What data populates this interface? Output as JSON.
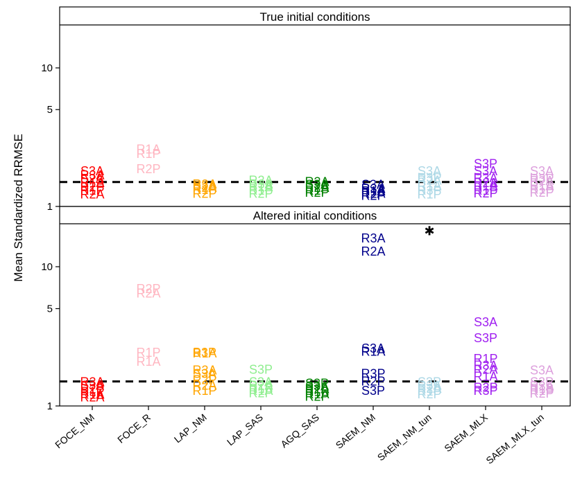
{
  "chart_data": {
    "type": "scatter",
    "ylabel": "Mean Standardized RRMSE",
    "yscale": "log",
    "ylim": [
      1,
      22
    ],
    "yticks": [
      1,
      5,
      10
    ],
    "reference_line": 1.5,
    "categories": [
      "FOCE_NM",
      "FOCE_R",
      "LAP_NM",
      "LAP_SAS",
      "AGQ_SAS",
      "SAEM_NM",
      "SAEM_NM_tun",
      "SAEM_MLX",
      "SAEM_MLX_tun"
    ],
    "colors": {
      "FOCE_NM": "#ff0000",
      "FOCE_R": "#ffb6c1",
      "LAP_NM": "#ffa500",
      "LAP_SAS": "#90ee90",
      "AGQ_SAS": "#008000",
      "SAEM_NM": "#00008b",
      "SAEM_NM_tun": "#add8e6",
      "SAEM_MLX": "#a020f0",
      "SAEM_MLX_tun": "#dda0dd"
    },
    "panels": [
      {
        "title": "True initial conditions",
        "points": [
          {
            "category": "FOCE_NM",
            "label": "S3A",
            "y": 1.82
          },
          {
            "category": "FOCE_NM",
            "label": "R3A",
            "y": 1.7
          },
          {
            "category": "FOCE_NM",
            "label": "S2A",
            "y": 1.6
          },
          {
            "category": "FOCE_NM",
            "label": "R1A",
            "y": 1.5
          },
          {
            "category": "FOCE_NM",
            "label": "R2P",
            "y": 1.4
          },
          {
            "category": "FOCE_NM",
            "label": "R1P",
            "y": 1.32
          },
          {
            "category": "FOCE_NM",
            "label": "R2A",
            "y": 1.24
          },
          {
            "category": "FOCE_R",
            "label": "R1A",
            "y": 2.62
          },
          {
            "category": "FOCE_R",
            "label": "R1P",
            "y": 2.42
          },
          {
            "category": "FOCE_R",
            "label": "R2P",
            "y": 1.88
          },
          {
            "category": "LAP_NM",
            "label": "R3A",
            "y": 1.46
          },
          {
            "category": "LAP_NM",
            "label": "S3A",
            "y": 1.42
          },
          {
            "category": "LAP_NM",
            "label": "R2A",
            "y": 1.38
          },
          {
            "category": "LAP_NM",
            "label": "R1P",
            "y": 1.33
          },
          {
            "category": "LAP_NM",
            "label": "R2P",
            "y": 1.25
          },
          {
            "category": "LAP_SAS",
            "label": "R2A",
            "y": 1.56
          },
          {
            "category": "LAP_SAS",
            "label": "R3A",
            "y": 1.46
          },
          {
            "category": "LAP_SAS",
            "label": "R1A",
            "y": 1.4
          },
          {
            "category": "LAP_SAS",
            "label": "R1P",
            "y": 1.32
          },
          {
            "category": "LAP_SAS",
            "label": "R2P",
            "y": 1.25
          },
          {
            "category": "AGQ_SAS",
            "label": "R3A",
            "y": 1.52
          },
          {
            "category": "AGQ_SAS",
            "label": "S3A",
            "y": 1.45
          },
          {
            "category": "AGQ_SAS",
            "label": "R2A",
            "y": 1.38
          },
          {
            "category": "AGQ_SAS",
            "label": "R1P",
            "y": 1.32
          },
          {
            "category": "AGQ_SAS",
            "label": "R2P",
            "y": 1.27
          },
          {
            "category": "SAEM_NM",
            "label": "S3A",
            "y": 1.45
          },
          {
            "category": "SAEM_NM",
            "label": "R3A",
            "y": 1.36
          },
          {
            "category": "SAEM_NM",
            "label": "R1A",
            "y": 1.3
          },
          {
            "category": "SAEM_NM",
            "label": "R2A",
            "y": 1.25
          },
          {
            "category": "SAEM_NM",
            "label": "R2P",
            "y": 1.21
          },
          {
            "category": "SAEM_NM_tun",
            "label": "S3A",
            "y": 1.82
          },
          {
            "category": "SAEM_NM_tun",
            "label": "R3P",
            "y": 1.62
          },
          {
            "category": "SAEM_NM_tun",
            "label": "R2A",
            "y": 1.56
          },
          {
            "category": "SAEM_NM_tun",
            "label": "R1A",
            "y": 1.42
          },
          {
            "category": "SAEM_NM_tun",
            "label": "R3P",
            "y": 1.32
          },
          {
            "category": "SAEM_NM_tun",
            "label": "R1P",
            "y": 1.24
          },
          {
            "category": "SAEM_MLX",
            "label": "S3P",
            "y": 2.05
          },
          {
            "category": "SAEM_MLX",
            "label": "S3A",
            "y": 1.82
          },
          {
            "category": "SAEM_MLX",
            "label": "R3A",
            "y": 1.62
          },
          {
            "category": "SAEM_MLX",
            "label": "R2A",
            "y": 1.5
          },
          {
            "category": "SAEM_MLX",
            "label": "R1A",
            "y": 1.42
          },
          {
            "category": "SAEM_MLX",
            "label": "R1P",
            "y": 1.32
          },
          {
            "category": "SAEM_MLX",
            "label": "R2P",
            "y": 1.26
          },
          {
            "category": "SAEM_MLX_tun",
            "label": "S3A",
            "y": 1.82
          },
          {
            "category": "SAEM_MLX_tun",
            "label": "R3P",
            "y": 1.6
          },
          {
            "category": "SAEM_MLX_tun",
            "label": "R2A",
            "y": 1.55
          },
          {
            "category": "SAEM_MLX_tun",
            "label": "R1A",
            "y": 1.42
          },
          {
            "category": "SAEM_MLX_tun",
            "label": "R1P",
            "y": 1.34
          },
          {
            "category": "SAEM_MLX_tun",
            "label": "R2P",
            "y": 1.27
          }
        ]
      },
      {
        "title": "Altered initial conditions",
        "points": [
          {
            "category": "FOCE_NM",
            "label": "R3A",
            "y": 1.5
          },
          {
            "category": "FOCE_NM",
            "label": "S3A",
            "y": 1.42
          },
          {
            "category": "FOCE_NM",
            "label": "R2P",
            "y": 1.34
          },
          {
            "category": "FOCE_NM",
            "label": "R1P",
            "y": 1.28
          },
          {
            "category": "FOCE_NM",
            "label": "R1A",
            "y": 1.22
          },
          {
            "category": "FOCE_NM",
            "label": "R2A",
            "y": 1.17
          },
          {
            "category": "FOCE_R",
            "label": "R2P",
            "y": 7.0
          },
          {
            "category": "FOCE_R",
            "label": "R2A",
            "y": 6.5
          },
          {
            "category": "FOCE_R",
            "label": "R1P",
            "y": 2.45
          },
          {
            "category": "FOCE_R",
            "label": "R1A",
            "y": 2.1
          },
          {
            "category": "LAP_NM",
            "label": "B3P",
            "y": 2.45
          },
          {
            "category": "LAP_NM",
            "label": "R1A",
            "y": 2.42
          },
          {
            "category": "LAP_NM",
            "label": "R3A",
            "y": 1.82
          },
          {
            "category": "LAP_NM",
            "label": "S3A",
            "y": 1.72
          },
          {
            "category": "LAP_NM",
            "label": "R2P",
            "y": 1.55
          },
          {
            "category": "LAP_NM",
            "label": "R2A",
            "y": 1.42
          },
          {
            "category": "LAP_NM",
            "label": "R1P",
            "y": 1.3
          },
          {
            "category": "LAP_SAS",
            "label": "S3P",
            "y": 1.85
          },
          {
            "category": "LAP_SAS",
            "label": "S3A",
            "y": 1.5
          },
          {
            "category": "LAP_SAS",
            "label": "R2A",
            "y": 1.42
          },
          {
            "category": "LAP_SAS",
            "label": "R1P",
            "y": 1.35
          },
          {
            "category": "LAP_SAS",
            "label": "R1A",
            "y": 1.3
          },
          {
            "category": "LAP_SAS",
            "label": "R2P",
            "y": 1.25
          },
          {
            "category": "AGQ_SAS",
            "label": "S3P",
            "y": 1.47
          },
          {
            "category": "AGQ_SAS",
            "label": "S3A",
            "y": 1.4
          },
          {
            "category": "AGQ_SAS",
            "label": "R2A",
            "y": 1.34
          },
          {
            "category": "AGQ_SAS",
            "label": "R1P",
            "y": 1.28
          },
          {
            "category": "AGQ_SAS",
            "label": "R1A",
            "y": 1.23
          },
          {
            "category": "AGQ_SAS",
            "label": "R2P",
            "y": 1.18
          },
          {
            "category": "SAEM_NM",
            "label": "R3A",
            "y": 16.2
          },
          {
            "category": "SAEM_NM",
            "label": "R2A",
            "y": 13.0
          },
          {
            "category": "SAEM_NM",
            "label": "S3A",
            "y": 2.62
          },
          {
            "category": "SAEM_NM",
            "label": "R1A",
            "y": 2.48
          },
          {
            "category": "SAEM_NM",
            "label": "R3P",
            "y": 1.72
          },
          {
            "category": "SAEM_NM",
            "label": "R2P",
            "y": 1.52
          },
          {
            "category": "SAEM_NM",
            "label": "S3P",
            "y": 1.3
          },
          {
            "category": "SAEM_NM_tun",
            "label": "S3P",
            "y": 1.5
          },
          {
            "category": "SAEM_NM_tun",
            "label": "R3A",
            "y": 1.42
          },
          {
            "category": "SAEM_NM_tun",
            "label": "R2A",
            "y": 1.35
          },
          {
            "category": "SAEM_NM_tun",
            "label": "R1P",
            "y": 1.29
          },
          {
            "category": "SAEM_NM_tun",
            "label": "R2P",
            "y": 1.23
          },
          {
            "category": "SAEM_MLX",
            "label": "S3A",
            "y": 4.05
          },
          {
            "category": "SAEM_MLX",
            "label": "S3P",
            "y": 3.1
          },
          {
            "category": "SAEM_MLX",
            "label": "R1P",
            "y": 2.2
          },
          {
            "category": "SAEM_MLX",
            "label": "R3A",
            "y": 1.98
          },
          {
            "category": "SAEM_MLX",
            "label": "R2A",
            "y": 1.85
          },
          {
            "category": "SAEM_MLX",
            "label": "R1A",
            "y": 1.65
          },
          {
            "category": "SAEM_MLX",
            "label": "R2P",
            "y": 1.37
          },
          {
            "category": "SAEM_MLX",
            "label": "R3P",
            "y": 1.3
          },
          {
            "category": "SAEM_MLX_tun",
            "label": "S3A",
            "y": 1.82
          },
          {
            "category": "SAEM_MLX_tun",
            "label": "S3P",
            "y": 1.5
          },
          {
            "category": "SAEM_MLX_tun",
            "label": "R3A",
            "y": 1.4
          },
          {
            "category": "SAEM_MLX_tun",
            "label": "R1B",
            "y": 1.35
          },
          {
            "category": "SAEM_MLX_tun",
            "label": "R1P",
            "y": 1.3
          },
          {
            "category": "SAEM_MLX_tun",
            "label": "R2P",
            "y": 1.24
          }
        ],
        "markers": [
          {
            "category": "SAEM_NM_tun",
            "symbol": "✱",
            "y": 18.2
          }
        ]
      }
    ]
  }
}
